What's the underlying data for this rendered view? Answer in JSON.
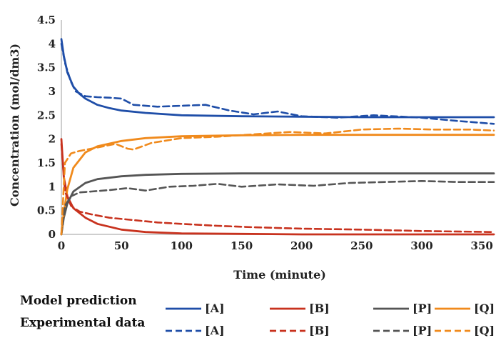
{
  "chart_data": {
    "type": "line",
    "xlabel": "Time (minute)",
    "ylabel": "Concentration (mol/dm3)",
    "xlim": [
      0,
      360
    ],
    "ylim": [
      0,
      4.5
    ],
    "x_ticks": [
      "0",
      "50",
      "100",
      "150",
      "200",
      "250",
      "300",
      "350"
    ],
    "y_ticks": [
      "0",
      "0.5",
      "1",
      "1.5",
      "2",
      "2.5",
      "3",
      "3.5",
      "4",
      "4.5"
    ],
    "grid": false,
    "legend": {
      "position": "bottom",
      "rows": [
        {
          "label": "Model prediction",
          "style": "solid"
        },
        {
          "label": "Experimental data",
          "style": "dashed"
        }
      ],
      "entries": [
        "[A]",
        "[B]",
        "[P]",
        "[Q]"
      ]
    },
    "colors": {
      "A": "#1f4ea8",
      "B": "#c8321e",
      "P": "#555555",
      "Q": "#f08a1c"
    },
    "series": [
      {
        "name": "[A]",
        "group": "Model prediction",
        "style": "solid",
        "color": "#1f4ea8",
        "x": [
          0,
          2,
          5,
          10,
          15,
          20,
          30,
          40,
          50,
          70,
          100,
          150,
          200,
          250,
          300,
          360
        ],
        "y": [
          4.1,
          3.75,
          3.4,
          3.1,
          2.95,
          2.85,
          2.72,
          2.65,
          2.6,
          2.55,
          2.5,
          2.48,
          2.47,
          2.46,
          2.46,
          2.46
        ]
      },
      {
        "name": "[B]",
        "group": "Model prediction",
        "style": "solid",
        "color": "#c8321e",
        "x": [
          0,
          2,
          5,
          10,
          20,
          30,
          50,
          70,
          100,
          150,
          200,
          250,
          300,
          360
        ],
        "y": [
          2.0,
          1.2,
          0.8,
          0.55,
          0.35,
          0.22,
          0.1,
          0.05,
          0.02,
          0.01,
          0.0,
          0.0,
          0.0,
          0.0
        ]
      },
      {
        "name": "[P]",
        "group": "Model prediction",
        "style": "solid",
        "color": "#555555",
        "x": [
          0,
          2,
          5,
          10,
          20,
          30,
          50,
          70,
          100,
          150,
          200,
          250,
          300,
          360
        ],
        "y": [
          0.0,
          0.35,
          0.65,
          0.9,
          1.08,
          1.16,
          1.22,
          1.25,
          1.27,
          1.28,
          1.28,
          1.28,
          1.28,
          1.28
        ]
      },
      {
        "name": "[Q]",
        "group": "Model prediction",
        "style": "solid",
        "color": "#f08a1c",
        "x": [
          0,
          2,
          5,
          10,
          20,
          30,
          50,
          70,
          100,
          150,
          200,
          250,
          300,
          360
        ],
        "y": [
          0.0,
          0.45,
          0.95,
          1.4,
          1.72,
          1.85,
          1.96,
          2.02,
          2.06,
          2.08,
          2.09,
          2.09,
          2.09,
          2.09
        ]
      },
      {
        "name": "[A]",
        "group": "Experimental data",
        "style": "dashed",
        "color": "#1f4ea8",
        "x": [
          0,
          3,
          8,
          12,
          20,
          30,
          40,
          50,
          60,
          80,
          100,
          120,
          140,
          160,
          180,
          200,
          230,
          260,
          300,
          330,
          360
        ],
        "y": [
          4.0,
          3.6,
          3.2,
          3.0,
          2.9,
          2.88,
          2.87,
          2.85,
          2.72,
          2.68,
          2.7,
          2.72,
          2.6,
          2.52,
          2.58,
          2.48,
          2.45,
          2.5,
          2.45,
          2.38,
          2.32
        ]
      },
      {
        "name": "[B]",
        "group": "Experimental data",
        "style": "dashed",
        "color": "#c8321e",
        "x": [
          0,
          3,
          8,
          15,
          25,
          40,
          60,
          80,
          100,
          130,
          160,
          200,
          250,
          300,
          360
        ],
        "y": [
          1.9,
          0.9,
          0.6,
          0.48,
          0.42,
          0.35,
          0.3,
          0.25,
          0.22,
          0.18,
          0.15,
          0.12,
          0.1,
          0.07,
          0.05
        ]
      },
      {
        "name": "[P]",
        "group": "Experimental data",
        "style": "dashed",
        "color": "#555555",
        "x": [
          0,
          3,
          8,
          15,
          25,
          40,
          55,
          70,
          90,
          110,
          130,
          150,
          180,
          210,
          240,
          270,
          300,
          330,
          360
        ],
        "y": [
          0.0,
          0.6,
          0.8,
          0.88,
          0.9,
          0.93,
          0.97,
          0.92,
          1.0,
          1.02,
          1.06,
          1.0,
          1.05,
          1.02,
          1.08,
          1.1,
          1.12,
          1.1,
          1.1
        ]
      },
      {
        "name": "[Q]",
        "group": "Experimental data",
        "style": "dashed",
        "color": "#f08a1c",
        "x": [
          0,
          3,
          8,
          15,
          25,
          35,
          45,
          55,
          60,
          75,
          100,
          130,
          160,
          190,
          220,
          250,
          280,
          310,
          340,
          360
        ],
        "y": [
          0.0,
          1.5,
          1.7,
          1.75,
          1.8,
          1.85,
          1.9,
          1.8,
          1.78,
          1.92,
          2.02,
          2.05,
          2.1,
          2.15,
          2.12,
          2.2,
          2.22,
          2.2,
          2.2,
          2.18
        ]
      }
    ]
  }
}
